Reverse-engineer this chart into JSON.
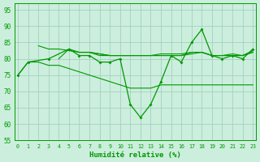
{
  "background_color": "#cceedd",
  "grid_color": "#99ccbb",
  "line_color": "#009900",
  "xlabel": "Humidité relative (%)",
  "ylim": [
    55,
    97
  ],
  "xlim": [
    -0.3,
    23.3
  ],
  "yticks": [
    55,
    60,
    65,
    70,
    75,
    80,
    85,
    90,
    95
  ],
  "xticks": [
    0,
    1,
    2,
    3,
    4,
    5,
    6,
    7,
    8,
    9,
    10,
    11,
    12,
    13,
    14,
    15,
    16,
    17,
    18,
    19,
    20,
    21,
    22,
    23
  ],
  "series": {
    "zigzag": [
      75,
      79,
      null,
      80,
      null,
      83,
      81,
      81,
      79,
      79,
      80,
      66,
      62,
      66,
      73,
      81,
      79,
      85,
      89,
      81,
      80,
      81,
      80,
      83
    ],
    "flat_decline": [
      75,
      79,
      79,
      78,
      78,
      77,
      76,
      75,
      74,
      73,
      72,
      71,
      71,
      71,
      72,
      72,
      72,
      72,
      72,
      72,
      72,
      72,
      72,
      72
    ],
    "smooth1": [
      null,
      null,
      84,
      83,
      83,
      82.5,
      82,
      82,
      81.5,
      81,
      81,
      81,
      81,
      81,
      81,
      81,
      81,
      81.5,
      82,
      81,
      81,
      81,
      81,
      82.5
    ],
    "smooth2": [
      null,
      null,
      null,
      null,
      80,
      83,
      82,
      82,
      81,
      81,
      81,
      81,
      81,
      81,
      81,
      81,
      81,
      82,
      82,
      81,
      81,
      81,
      81,
      82
    ],
    "smooth3": [
      null,
      null,
      null,
      null,
      null,
      null,
      82,
      82,
      81.5,
      81,
      81,
      81,
      81,
      81,
      81.5,
      81.5,
      81.5,
      82,
      82,
      81,
      81,
      81.5,
      81,
      82
    ]
  }
}
